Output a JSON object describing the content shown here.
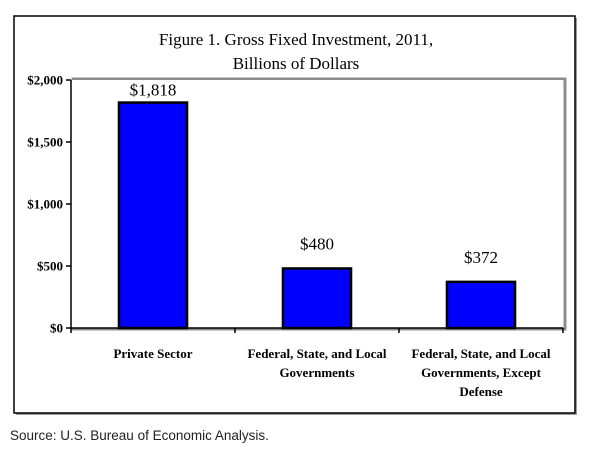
{
  "chart_data": {
    "type": "bar",
    "title": "Figure 1. Gross Fixed Investment, 2011,",
    "subtitle": "Billions of Dollars",
    "categories": [
      [
        "Private Sector"
      ],
      [
        "Federal, State, and Local",
        "Governments"
      ],
      [
        "Federal, State, and Local",
        "Governments, Except",
        "Defense"
      ]
    ],
    "values": [
      1818,
      480,
      372
    ],
    "value_labels": [
      "$1,818",
      "$480",
      "$372"
    ],
    "xlabel": "",
    "ylabel": "",
    "ylim": [
      0,
      2000
    ],
    "yticks": [
      0,
      500,
      1000,
      1500,
      2000
    ],
    "ytick_labels": [
      "$0",
      "$500",
      "$1,000",
      "$1,500",
      "$2,000"
    ],
    "grid": false,
    "legend": "none",
    "colors": {
      "bar_fill": "#0000FF",
      "bar_stroke": "#000000",
      "plot_border": "#8c8c8c",
      "frame": "#000000"
    }
  },
  "source": "Source: U.S. Bureau of Economic Analysis."
}
